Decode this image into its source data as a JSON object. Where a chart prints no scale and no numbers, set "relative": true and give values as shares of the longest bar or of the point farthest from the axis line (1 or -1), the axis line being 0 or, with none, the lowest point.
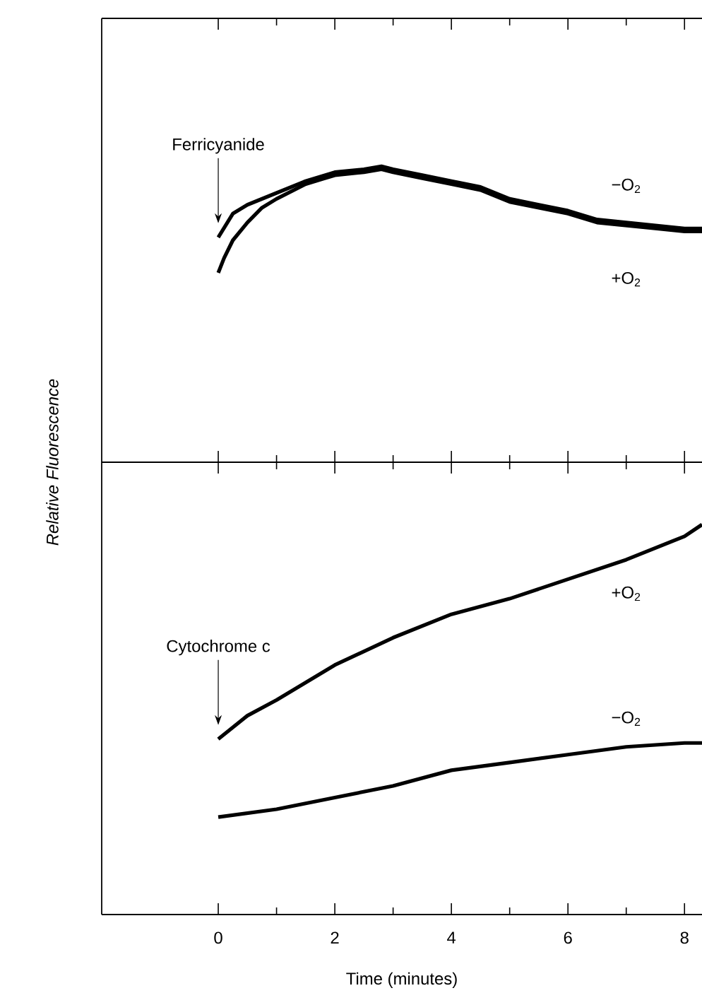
{
  "chart_data": [
    {
      "type": "line",
      "relative": true,
      "ylabel": "Relative Fluorescence",
      "xlim": [
        -2,
        8.3
      ],
      "xticks": [
        0,
        {
          "value": 1,
          "label": null
        },
        2,
        {
          "value": 3,
          "label": null
        },
        4,
        {
          "value": 5,
          "label": null
        },
        6,
        {
          "value": 7,
          "label": null
        },
        8
      ],
      "tick_labels": false,
      "annotations": [
        "Ferricyanide"
      ],
      "series": [
        {
          "name": "−O$_{2}$",
          "color": "#000000",
          "x": [
            0,
            0.25,
            0.5,
            1,
            1.5,
            2,
            2.5,
            2.8,
            3,
            3.5,
            4,
            4.5,
            5,
            5.5,
            6,
            6.5,
            7,
            7.5,
            8,
            8.3
          ],
          "values": [
            0.76,
            0.84,
            0.87,
            0.91,
            0.95,
            0.98,
            0.99,
            1.0,
            0.99,
            0.97,
            0.95,
            0.93,
            0.89,
            0.87,
            0.85,
            0.82,
            0.81,
            0.8,
            0.79,
            0.79
          ]
        },
        {
          "name": "+O$_{2}$",
          "color": "#000000",
          "x": [
            0,
            0.1,
            0.25,
            0.5,
            0.75,
            1,
            1.5,
            2,
            2.5,
            2.8,
            3,
            3.5,
            4,
            4.5,
            5,
            5.5,
            6,
            6.5,
            7,
            7.5,
            8,
            8.3
          ],
          "values": [
            0.64,
            0.69,
            0.75,
            0.81,
            0.86,
            0.89,
            0.94,
            0.97,
            0.98,
            0.99,
            0.98,
            0.96,
            0.94,
            0.92,
            0.88,
            0.86,
            0.84,
            0.81,
            0.8,
            0.79,
            0.78,
            0.78
          ]
        }
      ]
    },
    {
      "type": "line",
      "relative": true,
      "xlabel": "Time (minutes)",
      "xlim": [
        -2,
        8.3
      ],
      "xticks": [
        0,
        {
          "value": 1,
          "label": null
        },
        2,
        {
          "value": 3,
          "label": null
        },
        4,
        {
          "value": 5,
          "label": null
        },
        6,
        {
          "value": 7,
          "label": null
        },
        8
      ],
      "tick_labels": "x",
      "annotations": [
        "Cytochrome c"
      ],
      "series": [
        {
          "name": "+O$_{2}$",
          "color": "#000000",
          "x": [
            0,
            0.5,
            1,
            2,
            3,
            4,
            5,
            6,
            7,
            8,
            8.3
          ],
          "values": [
            0.45,
            0.51,
            0.55,
            0.64,
            0.71,
            0.77,
            0.81,
            0.86,
            0.91,
            0.97,
            1.0
          ]
        },
        {
          "name": "−O$_{2}$",
          "color": "#000000",
          "x": [
            0,
            1,
            2,
            3,
            4,
            5,
            6,
            7,
            8,
            8.3
          ],
          "values": [
            0.25,
            0.27,
            0.3,
            0.33,
            0.37,
            0.39,
            0.41,
            0.43,
            0.44,
            0.44
          ]
        }
      ]
    }
  ]
}
